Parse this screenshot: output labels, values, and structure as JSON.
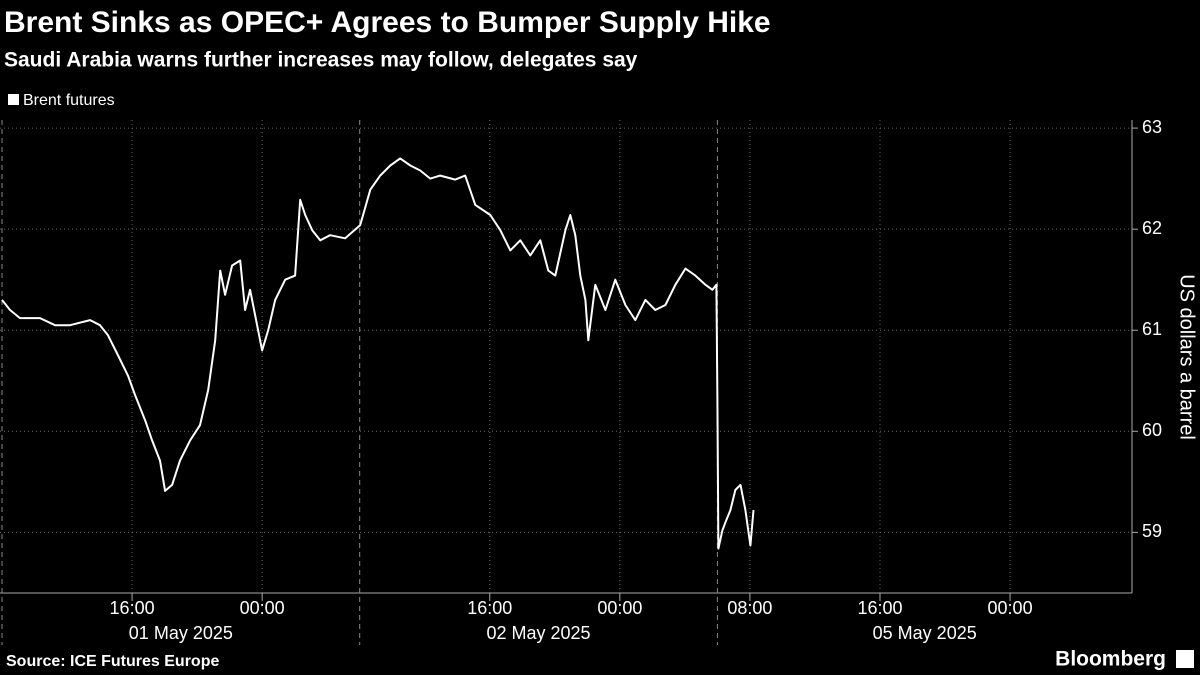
{
  "chart_data": {
    "type": "line",
    "title": "Brent Sinks as OPEC+ Agrees to Bumper Supply Hike",
    "subtitle": "Saudi Arabia warns further increases may follow, delegates say",
    "y_label": "US dollars a barrel",
    "source": "Source: ICE Futures Europe",
    "brand": "Bloomberg",
    "x": [
      0,
      0.49,
      1.11,
      2.34,
      3.26,
      4.18,
      5.42,
      6.03,
      6.52,
      7.14,
      7.75,
      8.18,
      8.8,
      9.23,
      9.72,
      10.03,
      10.46,
      10.95,
      11.57,
      12.18,
      12.68,
      13.11,
      13.42,
      13.72,
      14.15,
      14.65,
      14.95,
      15.26,
      15.75,
      16,
      16.37,
      16.8,
      17.42,
      18.03,
      18.34,
      18.65,
      19.08,
      19.57,
      20.18,
      21.11,
      22.03,
      22.65,
      23.26,
      23.88,
      24.49,
      25.11,
      25.72,
      26.34,
      26.95,
      27.88,
      28.49,
      29.11,
      30.03,
      30.65,
      31.26,
      31.88,
      32.49,
      33.11,
      33.6,
      34.03,
      34.65,
      34.95,
      35.26,
      35.57,
      35.88,
      36.06,
      36.49,
      37.11,
      37.72,
      38.34,
      38.95,
      39.57,
      40.18,
      40.8,
      41.42,
      42.03,
      42.65,
      43.26,
      43.69,
      43.94,
      44,
      44.06,
      44.31,
      44.55,
      44.8,
      45.11,
      45.42,
      45.72,
      46.03,
      46.22
    ],
    "series": [
      {
        "name": "Brent futures",
        "color": "#ffffff",
        "values": [
          61.3,
          61.2,
          61.12,
          61.12,
          61.05,
          61.05,
          61.1,
          61.05,
          60.95,
          60.75,
          60.55,
          60.36,
          60.11,
          59.91,
          59.71,
          59.41,
          59.47,
          59.71,
          59.91,
          60.06,
          60.41,
          60.9,
          61.59,
          61.35,
          61.64,
          61.69,
          61.2,
          61.4,
          61,
          60.8,
          61,
          61.3,
          61.5,
          61.54,
          62.29,
          62.14,
          61.99,
          61.89,
          61.94,
          61.91,
          62.04,
          62.39,
          62.53,
          62.63,
          62.7,
          62.63,
          62.58,
          62.5,
          62.53,
          62.49,
          62.53,
          62.24,
          62.14,
          61.99,
          61.79,
          61.89,
          61.74,
          61.89,
          61.59,
          61.54,
          61.99,
          62.14,
          61.94,
          61.54,
          61.3,
          60.9,
          61.45,
          61.2,
          61.5,
          61.25,
          61.1,
          61.3,
          61.2,
          61.25,
          61.45,
          61.61,
          61.54,
          61.45,
          61.4,
          61.45,
          60.31,
          58.84,
          59.02,
          59.12,
          59.22,
          59.42,
          59.47,
          59.22,
          58.87,
          59.22
        ]
      }
    ],
    "xlim": [
      0,
      69.5
    ],
    "xticks": [
      {
        "value": 8,
        "label": "16:00"
      },
      {
        "value": 16,
        "label": "00:00"
      },
      {
        "value": 30,
        "label": "16:00"
      },
      {
        "value": 38,
        "label": "00:00"
      },
      {
        "value": 46,
        "label": "08:00"
      },
      {
        "value": 54,
        "label": "16:00"
      },
      {
        "value": 62,
        "label": "00:00"
      }
    ],
    "date_ticks": [
      {
        "value": 0,
        "label": "01 May 2025"
      },
      {
        "value": 22,
        "label": "02 May 2025"
      },
      {
        "value": 44,
        "label": "05 May 2025"
      }
    ],
    "ylim": [
      58.4,
      63.08
    ],
    "yticks": [
      59,
      60,
      61,
      62,
      63
    ],
    "grid": true,
    "legend": "top-left"
  }
}
